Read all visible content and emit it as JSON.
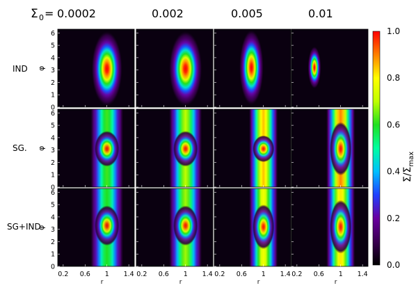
{
  "header": {
    "sigma_label": "Σ",
    "sigma_sub": "0",
    "equals": "=",
    "columns": [
      "0.0002",
      "0.002",
      "0.005",
      "0.01"
    ]
  },
  "rows": [
    "IND",
    "SG.",
    "SG+IND"
  ],
  "phi_symbol": "φ",
  "y_ticks": [
    "0",
    "1",
    "2",
    "3",
    "4",
    "5",
    "6"
  ],
  "x_ticks": [
    [
      "0.2",
      "0.6",
      "1",
      "1.4"
    ],
    [
      "0.2",
      "0.6",
      "1",
      "1.4"
    ],
    [
      "0.2",
      "0.6",
      "1",
      "1.4"
    ],
    [
      "0.2",
      "0.6",
      "1",
      "1.4"
    ]
  ],
  "x_label": "r",
  "colorbar": {
    "ticks": [
      "1.0",
      "0.8",
      "0.6",
      "0.4",
      "0.2",
      "0.0"
    ],
    "label_main": "Σ/Σ",
    "label_sub": "max",
    "colors": [
      "#000000",
      "#3a0050",
      "#6a00a0",
      "#2040ff",
      "#00c0ff",
      "#00ffa0",
      "#20e020",
      "#c0ff00",
      "#ffff00",
      "#ff8000",
      "#ff0000"
    ]
  },
  "panels": [
    [
      {
        "shape": "blob",
        "cx": 1.0,
        "cy": 3.1,
        "w": 0.12,
        "h": 0.9,
        "halo": 0.28,
        "peak": 1.0
      },
      {
        "shape": "blob",
        "cx": 1.0,
        "cy": 3.1,
        "w": 0.12,
        "h": 0.9,
        "halo": 0.3,
        "peak": 1.0
      },
      {
        "shape": "blob",
        "cx": 0.78,
        "cy": 3.2,
        "w": 0.1,
        "h": 0.8,
        "halo": 0.22,
        "peak": 1.0
      },
      {
        "shape": "blob",
        "cx": 0.52,
        "cy": 3.2,
        "w": 0.06,
        "h": 0.55,
        "halo": 0.12,
        "peak": 1.0
      }
    ],
    [
      {
        "shape": "band",
        "cx": 1.0,
        "cy": 3.1,
        "w": 0.1,
        "h": 0.8,
        "halo": 0.25,
        "peak": 1.0,
        "band": 0.62
      },
      {
        "shape": "band",
        "cx": 1.0,
        "cy": 3.1,
        "w": 0.1,
        "h": 0.8,
        "halo": 0.25,
        "peak": 1.0,
        "band": 0.7
      },
      {
        "shape": "band",
        "cx": 1.0,
        "cy": 3.1,
        "w": 0.1,
        "h": 0.6,
        "halo": 0.22,
        "peak": 1.0,
        "band": 0.85
      },
      {
        "shape": "band",
        "cx": 1.0,
        "cy": 3.1,
        "w": 0.14,
        "h": 1.2,
        "halo": 0.22,
        "peak": 1.0,
        "band": 0.9
      }
    ],
    [
      {
        "shape": "band",
        "cx": 1.0,
        "cy": 3.3,
        "w": 0.12,
        "h": 0.9,
        "halo": 0.25,
        "peak": 1.0,
        "band": 0.6
      },
      {
        "shape": "band",
        "cx": 1.0,
        "cy": 3.3,
        "w": 0.12,
        "h": 0.9,
        "halo": 0.25,
        "peak": 1.0,
        "band": 0.68
      },
      {
        "shape": "band",
        "cx": 1.0,
        "cy": 3.2,
        "w": 0.13,
        "h": 1.0,
        "halo": 0.22,
        "peak": 1.0,
        "band": 0.78
      },
      {
        "shape": "band",
        "cx": 1.0,
        "cy": 3.2,
        "w": 0.15,
        "h": 1.2,
        "halo": 0.22,
        "peak": 1.0,
        "band": 0.82
      }
    ]
  ]
}
